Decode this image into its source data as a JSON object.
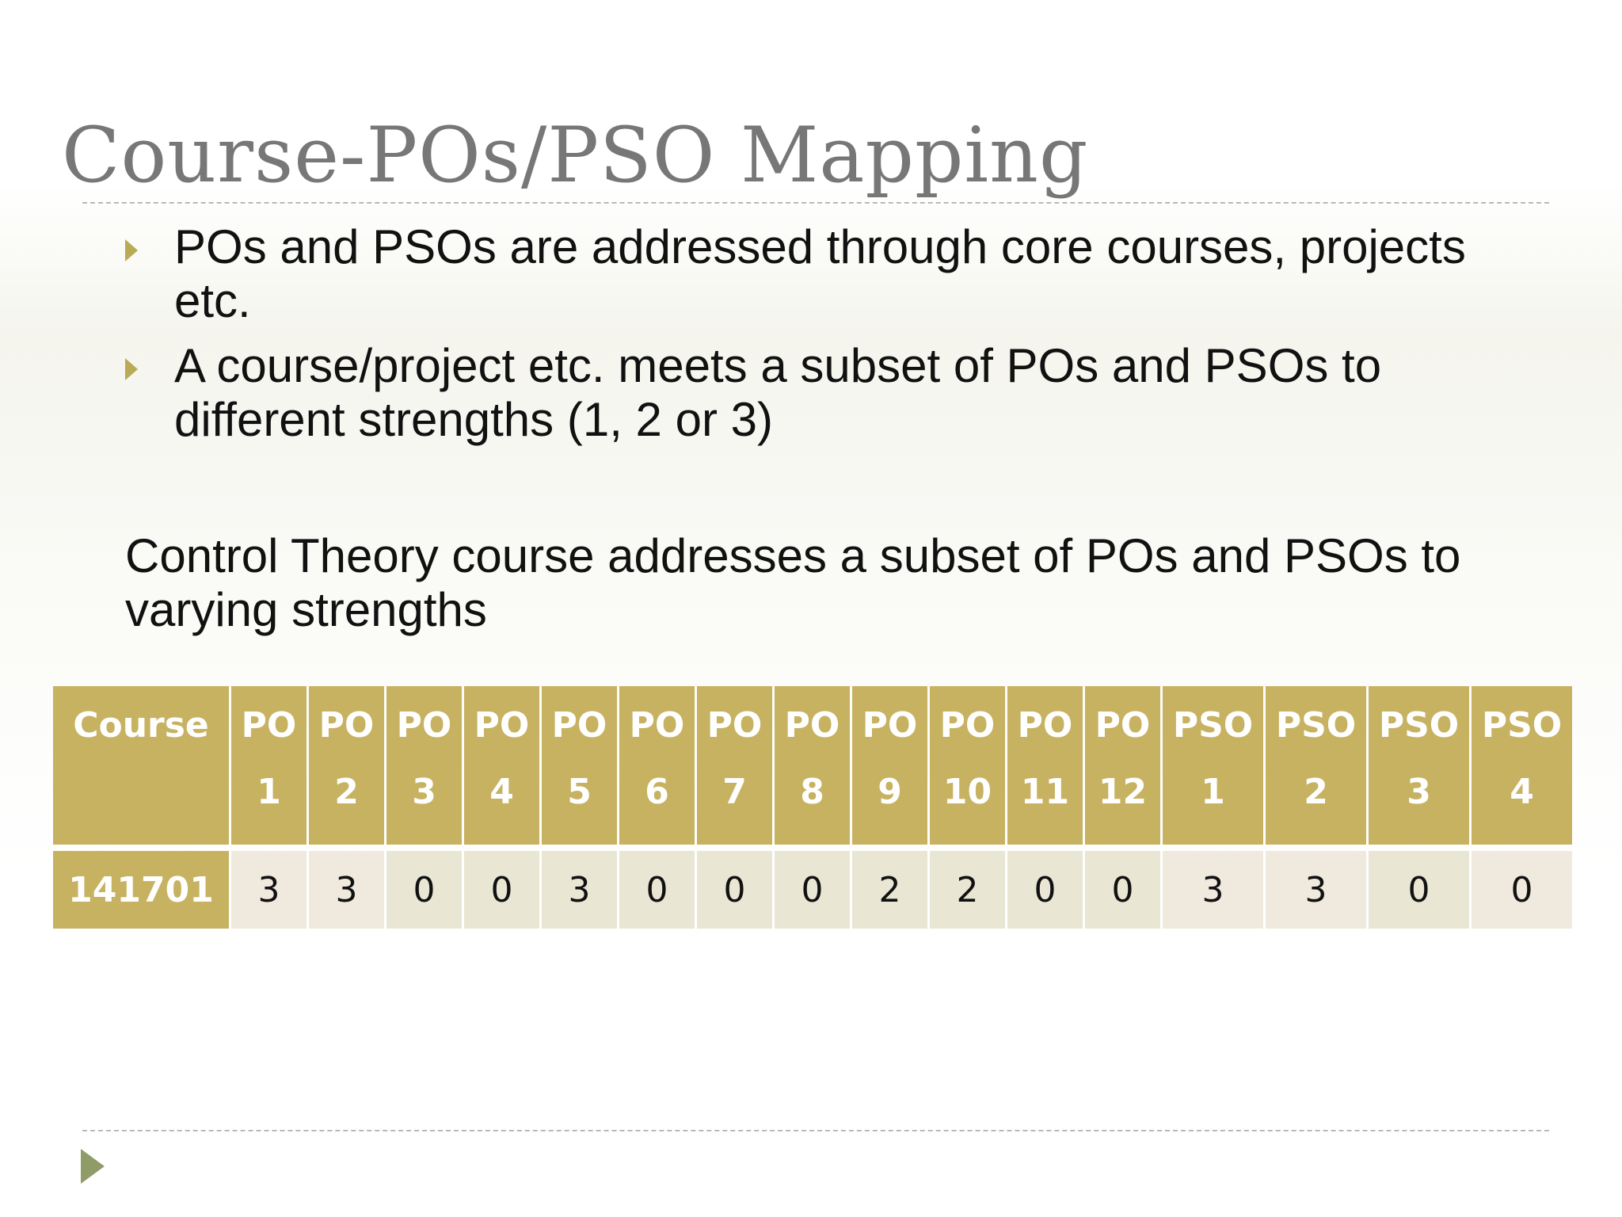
{
  "slide": {
    "title": "Course-POs/PSO Mapping",
    "bullets": [
      "POs and PSOs are addressed through core courses, projects etc.",
      "A course/project etc. meets a subset of POs and PSOs to different strengths (1, 2 or 3)"
    ],
    "paragraph": "Control Theory course addresses a subset of POs and PSOs to varying strengths",
    "colors": {
      "header_fill": "#c7b262",
      "row_fill": "#e9e6d4",
      "bullet_marker": "#b9ab55",
      "title_text": "#777777"
    },
    "icons": {
      "bullet": "triangle-right-icon",
      "footer": "triangle-right-icon"
    }
  },
  "table": {
    "headers": [
      {
        "line1": "Course",
        "line2": ""
      },
      {
        "line1": "PO",
        "line2": "1"
      },
      {
        "line1": "PO",
        "line2": "2"
      },
      {
        "line1": "PO",
        "line2": "3"
      },
      {
        "line1": "PO",
        "line2": "4"
      },
      {
        "line1": "PO",
        "line2": "5"
      },
      {
        "line1": "PO",
        "line2": "6"
      },
      {
        "line1": "PO",
        "line2": "7"
      },
      {
        "line1": "PO",
        "line2": "8"
      },
      {
        "line1": "PO",
        "line2": "9"
      },
      {
        "line1": "PO",
        "line2": "10"
      },
      {
        "line1": "PO",
        "line2": "11"
      },
      {
        "line1": "PO",
        "line2": "12"
      },
      {
        "line1": "PSO",
        "line2": "1"
      },
      {
        "line1": "PSO",
        "line2": "2"
      },
      {
        "line1": "PSO",
        "line2": "3"
      },
      {
        "line1": "PSO",
        "line2": "4"
      }
    ],
    "rows": [
      {
        "course": "141701",
        "values": [
          "3",
          "3",
          "0",
          "0",
          "3",
          "0",
          "0",
          "0",
          "2",
          "2",
          "0",
          "0",
          "3",
          "3",
          "0",
          "0"
        ]
      }
    ]
  }
}
